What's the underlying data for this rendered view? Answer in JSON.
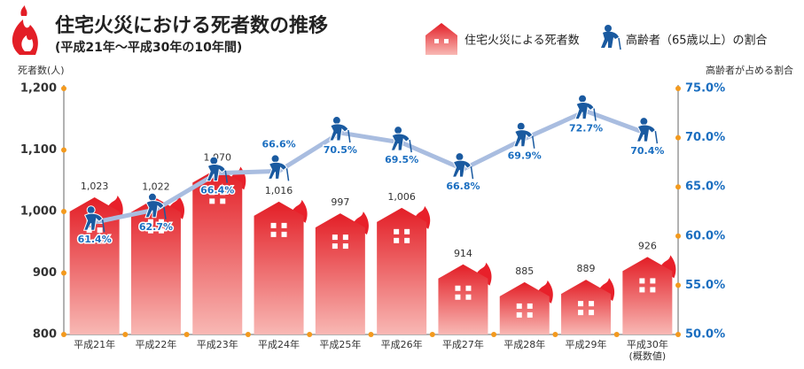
{
  "chart_data": {
    "type": "bar",
    "title": "住宅火災における死者数の推移",
    "subtitle": "(平成21年〜平成30年の10年間)",
    "y_label": "死者数(人)",
    "y2_label": "高齢者が占める割合",
    "categories": [
      "平成21年",
      "平成22年",
      "平成23年",
      "平成24年",
      "平成25年",
      "平成26年",
      "平成27年",
      "平成28年",
      "平成29年",
      "平成30年(概数値)"
    ],
    "series": [
      {
        "name": "住宅火災による死者数",
        "color": "#e8202a",
        "values": [
          1023,
          1022,
          1070,
          1016,
          997,
          1006,
          914,
          885,
          889,
          926
        ],
        "value_labels": [
          "1,023",
          "1,022",
          "1,070",
          "1,016",
          "997",
          "1,006",
          "914",
          "885",
          "889",
          "926"
        ]
      },
      {
        "name": "高齢者（65歳以上）の割合",
        "color": "#a9bde0",
        "type": "line",
        "axis": "y2",
        "values": [
          61.4,
          62.7,
          66.4,
          66.6,
          70.5,
          69.5,
          66.8,
          69.9,
          72.7,
          70.4
        ],
        "value_labels": [
          "61.4%",
          "62.7%",
          "66.4%",
          "66.6%",
          "70.5%",
          "69.5%",
          "66.8%",
          "69.9%",
          "72.7%",
          "70.4%"
        ]
      }
    ],
    "ylim": [
      800,
      1200
    ],
    "yticks": [
      800,
      900,
      {
        "value": 1000,
        "label": "1,000"
      },
      {
        "value": 1100,
        "label": "1,100"
      },
      {
        "value": 1200,
        "label": "1,200"
      }
    ],
    "y2lim": [
      50,
      75
    ],
    "y2ticks": [
      {
        "value": 50,
        "label": "50.0%"
      },
      {
        "value": 55,
        "label": "55.0%"
      },
      {
        "value": 60,
        "label": "60.0%"
      },
      {
        "value": 65,
        "label": "65.0%"
      },
      {
        "value": 70,
        "label": "70.0%"
      },
      {
        "value": 75,
        "label": "75.0%"
      }
    ],
    "legend": "top-right"
  }
}
